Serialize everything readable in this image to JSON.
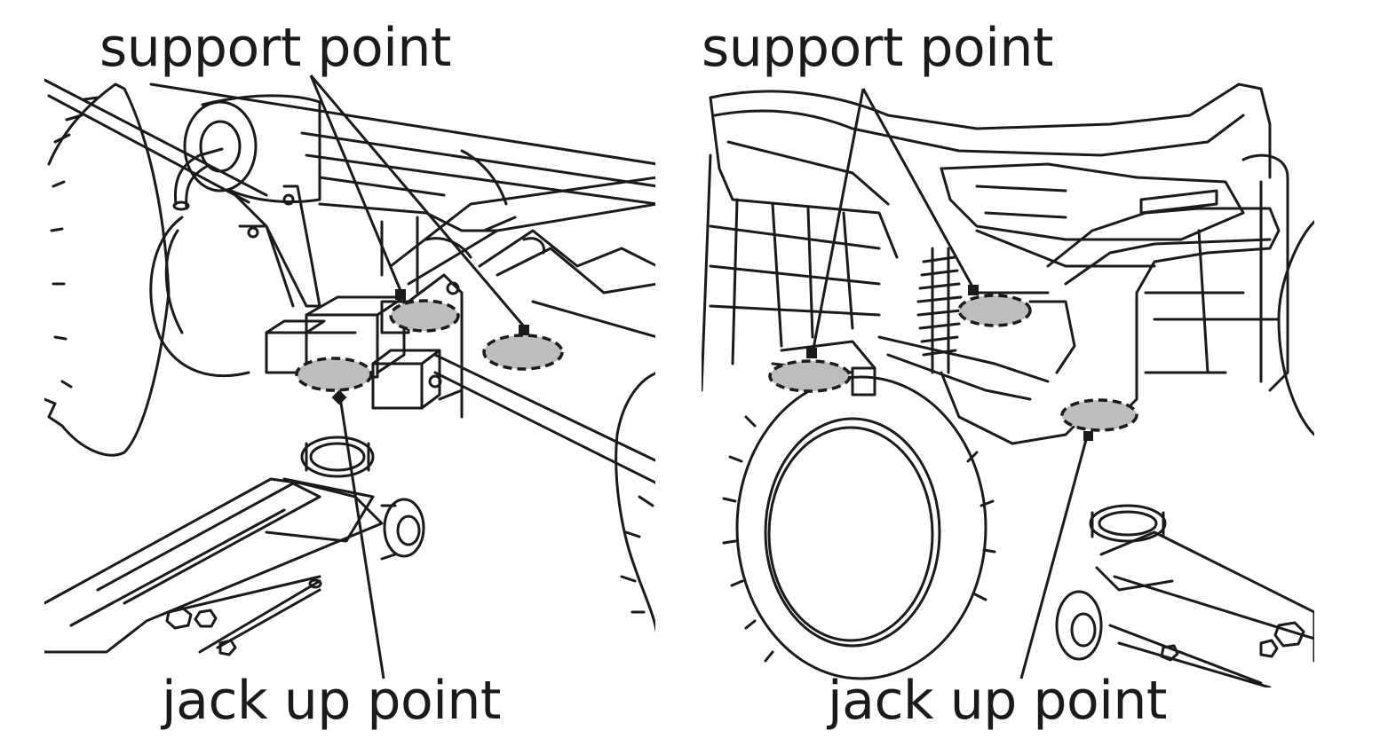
{
  "panels": {
    "left": {
      "support_label": "support point",
      "jack_label": "jack up point"
    },
    "right": {
      "support_label": "support point",
      "jack_label": "jack up point"
    }
  },
  "colors": {
    "line": "#1a1a1a",
    "highlight": "#bdbdbd",
    "background": "#ffffff"
  }
}
